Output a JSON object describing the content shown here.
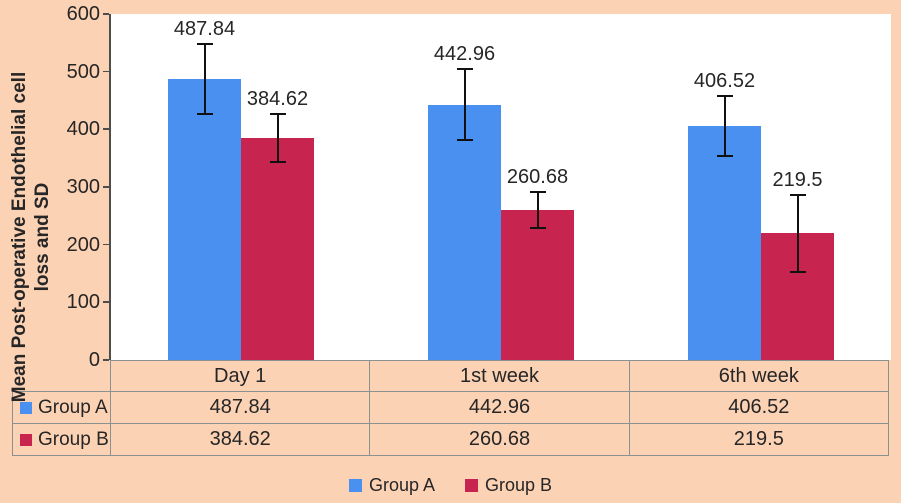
{
  "chart_data": {
    "type": "bar",
    "title": "",
    "ylabel": "Mean Post-operative Endothelial cell loss and SD",
    "ylabel_lines": [
      "Mean Post-operative Endothelial cell",
      "loss and SD"
    ],
    "categories": [
      "Day 1",
      "1st week",
      "6th week"
    ],
    "series": [
      {
        "name": "Group A",
        "color": "#4A90F0",
        "values": [
          487.84,
          442.96,
          406.52
        ],
        "sd": [
          61,
          62,
          52
        ]
      },
      {
        "name": "Group B",
        "color": "#C7254F",
        "values": [
          384.62,
          260.68,
          219.5
        ],
        "sd": [
          42,
          31,
          67
        ]
      }
    ],
    "ylim": [
      0,
      600
    ],
    "yticks": [
      0,
      100,
      200,
      300,
      400,
      500,
      600
    ],
    "grid": false,
    "legend_position": "bottom",
    "error_bars": true,
    "data_table_shown": true
  },
  "colors": {
    "background": "#FCD2B5",
    "plot_background": "#FFFFFF",
    "table_border": "#8B9191",
    "axis_line": "#4D4D4D",
    "error_bar": "#111111",
    "text": "#262626"
  }
}
